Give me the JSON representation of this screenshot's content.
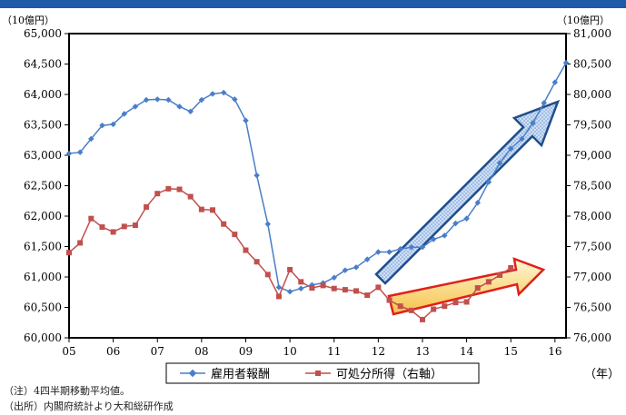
{
  "chart_data": {
    "type": "line",
    "left_axis": {
      "unit_label": "（10億円）",
      "ylim": [
        60000,
        65000
      ],
      "ticks": [
        60000,
        60500,
        61000,
        61500,
        62000,
        62500,
        63000,
        63500,
        64000,
        64500,
        65000
      ],
      "tick_labels": [
        "60,000",
        "60,500",
        "61,000",
        "61,500",
        "62,000",
        "62,500",
        "63,000",
        "63,500",
        "64,000",
        "64,500",
        "65,000"
      ]
    },
    "right_axis": {
      "unit_label": "（10億円）",
      "ylim": [
        76000,
        81000
      ],
      "ticks": [
        76000,
        76500,
        77000,
        77500,
        78000,
        78500,
        79000,
        79500,
        80000,
        80500,
        81000
      ],
      "tick_labels": [
        "76,000",
        "76,500",
        "77,000",
        "77,500",
        "78,000",
        "78,500",
        "79,000",
        "79,500",
        "80,000",
        "80,500",
        "81,000"
      ]
    },
    "x_axis": {
      "xlim": [
        2005,
        2016.25
      ],
      "ticks": [
        2005,
        2006,
        2007,
        2008,
        2009,
        2010,
        2011,
        2012,
        2013,
        2014,
        2015,
        2016
      ],
      "tick_labels": [
        "05",
        "06",
        "07",
        "08",
        "09",
        "10",
        "11",
        "12",
        "13",
        "14",
        "15",
        "16"
      ],
      "unit_label": "（年）"
    },
    "series": [
      {
        "name": "雇用者報酬",
        "axis": "left",
        "color": "#4a7ec9",
        "marker": "diamond",
        "x": [
          2005,
          2005.25,
          2005.5,
          2005.75,
          2006,
          2006.25,
          2006.5,
          2006.75,
          2007,
          2007.25,
          2007.5,
          2007.75,
          2008,
          2008.25,
          2008.5,
          2008.75,
          2009,
          2009.25,
          2009.5,
          2009.75,
          2010,
          2010.25,
          2010.5,
          2010.75,
          2011,
          2011.25,
          2011.5,
          2011.75,
          2012,
          2012.25,
          2012.5,
          2012.75,
          2013,
          2013.25,
          2013.5,
          2013.75,
          2014,
          2014.25,
          2014.5,
          2014.75,
          2015,
          2015.25,
          2015.5,
          2015.75,
          2016,
          2016.25
        ],
        "values": [
          63030,
          63050,
          63270,
          63490,
          63510,
          63680,
          63800,
          63910,
          63920,
          63910,
          63800,
          63720,
          63910,
          64010,
          64030,
          63920,
          63570,
          62670,
          61870,
          60830,
          60760,
          60810,
          60870,
          60900,
          60990,
          61110,
          61160,
          61290,
          61410,
          61410,
          61460,
          61490,
          61490,
          61620,
          61680,
          61880,
          61960,
          62220,
          62560,
          62870,
          63110,
          63270,
          63530,
          63860,
          64200,
          64520
        ]
      },
      {
        "name": "可処分所得（右軸）",
        "axis": "right",
        "color": "#c0504d",
        "marker": "square",
        "x": [
          2005,
          2005.25,
          2005.5,
          2005.75,
          2006,
          2006.25,
          2006.5,
          2006.75,
          2007,
          2007.25,
          2007.5,
          2007.75,
          2008,
          2008.25,
          2008.5,
          2008.75,
          2009,
          2009.25,
          2009.5,
          2009.75,
          2010,
          2010.25,
          2010.5,
          2010.75,
          2011,
          2011.25,
          2011.5,
          2011.75,
          2012,
          2012.25,
          2012.5,
          2012.75,
          2013,
          2013.25,
          2013.5,
          2013.75,
          2014,
          2014.25,
          2014.5,
          2014.75,
          2015
        ],
        "values": [
          77400,
          77560,
          77960,
          77820,
          77740,
          77830,
          77850,
          78150,
          78370,
          78450,
          78440,
          78320,
          78110,
          78100,
          77870,
          77700,
          77440,
          77250,
          77040,
          76680,
          77120,
          76920,
          76820,
          76860,
          76810,
          76790,
          76770,
          76700,
          76830,
          76620,
          76520,
          76450,
          76300,
          76470,
          76520,
          76580,
          76590,
          76820,
          76920,
          77030,
          77150
        ]
      }
    ],
    "legend": {
      "placement": "bottom-center",
      "entries": [
        "雇用者報酬",
        "可処分所得（右軸）"
      ]
    },
    "grid": false,
    "annotations": [
      "blue upward arrow along 雇用者報酬 (2012–2016)",
      "red upward arrow along 可処分所得 (2012.5–2015.8)"
    ]
  },
  "notes": {
    "note": "（注）4四半期移動平均値。",
    "source": "（出所）内閣府統計より大和総研作成"
  },
  "colors": {
    "topbar": "#1f5aa6",
    "blue_series": "#4a7ec9",
    "red_series": "#c0504d"
  }
}
